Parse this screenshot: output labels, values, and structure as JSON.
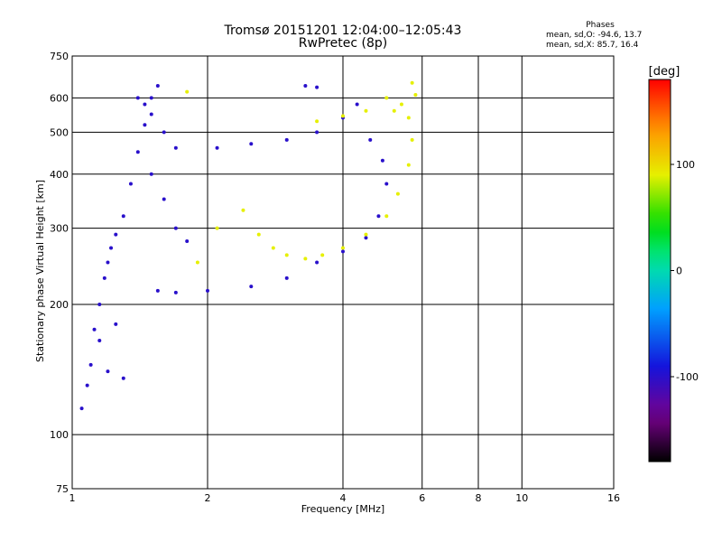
{
  "chart_data": {
    "type": "scatter",
    "title": "Tromsø 20151201 12:04:00–12:05:43",
    "subtitle": "RwPretec (8p)",
    "xlabel": "Frequency [MHz]",
    "ylabel": "Stationary phase Virtual Height [km]",
    "x_scale": "log2",
    "y_scale": "log",
    "xlim": [
      1,
      16
    ],
    "ylim": [
      75,
      750
    ],
    "x_ticks": [
      1,
      2,
      4,
      6,
      8,
      10,
      16
    ],
    "y_ticks": [
      75,
      100,
      200,
      300,
      400,
      500,
      600,
      750
    ],
    "grid": true,
    "phase_box": {
      "heading": "Phases",
      "line_o": "mean, sd,O: -94.6, 13.7",
      "line_x": "mean, sd,X: 85.7, 16.4"
    },
    "colorbar": {
      "label": "[deg]",
      "range": [
        -180,
        180
      ],
      "ticks": [
        "100",
        "0",
        "-100"
      ],
      "tick_values": [
        100,
        0,
        -100
      ]
    },
    "series": [
      {
        "mode": "O",
        "color_phase_deg": -100,
        "points": [
          [
            1.05,
            115
          ],
          [
            1.08,
            130
          ],
          [
            1.1,
            145
          ],
          [
            1.12,
            175
          ],
          [
            1.15,
            200
          ],
          [
            1.18,
            230
          ],
          [
            1.2,
            250
          ],
          [
            1.22,
            270
          ],
          [
            1.25,
            290
          ],
          [
            1.3,
            320
          ],
          [
            1.35,
            380
          ],
          [
            1.4,
            450
          ],
          [
            1.45,
            520
          ],
          [
            1.5,
            600
          ],
          [
            1.55,
            640
          ],
          [
            1.4,
            600
          ],
          [
            1.45,
            580
          ],
          [
            1.5,
            550
          ],
          [
            1.6,
            500
          ],
          [
            1.7,
            460
          ],
          [
            1.5,
            400
          ],
          [
            1.6,
            350
          ],
          [
            1.7,
            300
          ],
          [
            1.8,
            280
          ],
          [
            1.55,
            215
          ],
          [
            1.7,
            213
          ],
          [
            2.0,
            215
          ],
          [
            2.5,
            220
          ],
          [
            3.0,
            230
          ],
          [
            3.5,
            250
          ],
          [
            4.0,
            265
          ],
          [
            4.5,
            285
          ],
          [
            4.8,
            320
          ],
          [
            5.0,
            380
          ],
          [
            4.9,
            430
          ],
          [
            4.6,
            480
          ],
          [
            2.1,
            460
          ],
          [
            2.5,
            470
          ],
          [
            3.0,
            480
          ],
          [
            3.5,
            500
          ],
          [
            4.0,
            540
          ],
          [
            4.3,
            580
          ],
          [
            3.3,
            640
          ],
          [
            3.5,
            635
          ],
          [
            1.2,
            140
          ],
          [
            1.3,
            135
          ],
          [
            1.15,
            165
          ],
          [
            1.25,
            180
          ]
        ]
      },
      {
        "mode": "X",
        "color_phase_deg": 90,
        "points": [
          [
            2.4,
            330
          ],
          [
            2.6,
            290
          ],
          [
            2.8,
            270
          ],
          [
            3.0,
            260
          ],
          [
            3.3,
            255
          ],
          [
            3.6,
            260
          ],
          [
            4.0,
            270
          ],
          [
            4.5,
            290
          ],
          [
            5.0,
            320
          ],
          [
            5.3,
            360
          ],
          [
            5.6,
            420
          ],
          [
            5.7,
            480
          ],
          [
            5.6,
            540
          ],
          [
            5.4,
            580
          ],
          [
            5.2,
            560
          ],
          [
            5.8,
            610
          ],
          [
            3.5,
            530
          ],
          [
            4.0,
            545
          ],
          [
            4.5,
            560
          ],
          [
            5.0,
            600
          ],
          [
            5.7,
            650
          ],
          [
            1.9,
            250
          ],
          [
            2.1,
            300
          ],
          [
            1.8,
            620
          ]
        ]
      }
    ]
  }
}
